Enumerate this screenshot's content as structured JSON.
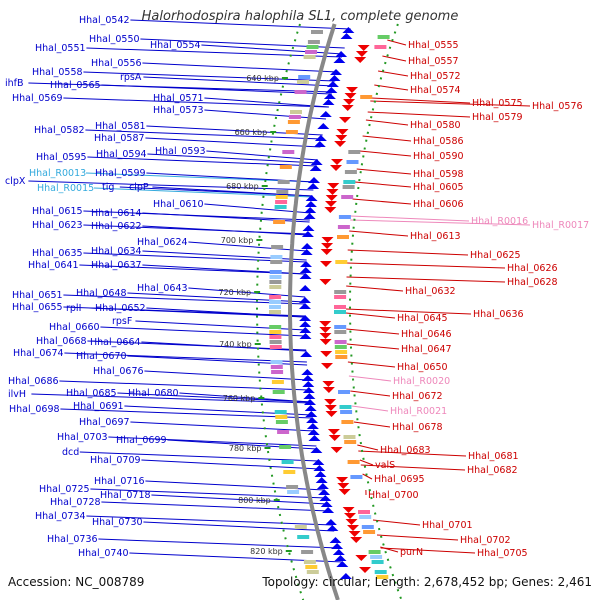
{
  "title": "Halorhodospira halophila SL1, complete genome",
  "footer": {
    "accession": "Accession: NC_008789",
    "summary": "Topology: circular; Length: 2,678,452 bp; Genes: 2,461"
  },
  "colors": {
    "forward_label": "#0000cc",
    "reverse_label": "#cc0000",
    "forward_rna_label": "#33aadd",
    "reverse_rna_label": "#ee88bb",
    "forward_arrow": "#0000ee",
    "reverse_arrow": "#ee0000",
    "tick_dots": "#229922",
    "backbone": "#888888"
  },
  "ticks": [
    "640 kbp",
    "660 kbp",
    "680 kbp",
    "700 kbp",
    "720 kbp",
    "740 kbp",
    "760 kbp",
    "780 kbp",
    "800 kbp",
    "820 kbp"
  ],
  "left_labels": [
    {
      "text": "Hhal_0542",
      "type": "gene"
    },
    {
      "text": "Hhal_0550",
      "type": "gene"
    },
    {
      "text": "Hhal_0551",
      "type": "gene"
    },
    {
      "text": "Hhal_0554",
      "type": "gene"
    },
    {
      "text": "Hhal_0556",
      "type": "gene"
    },
    {
      "text": "Hhal_0558",
      "type": "gene"
    },
    {
      "text": "rpsA",
      "type": "gene"
    },
    {
      "text": "ihfB",
      "type": "gene"
    },
    {
      "text": "Hhal_0565",
      "type": "gene"
    },
    {
      "text": "Hhal_0569",
      "type": "gene"
    },
    {
      "text": "Hhal_0571",
      "type": "gene"
    },
    {
      "text": "Hhal_0573",
      "type": "gene"
    },
    {
      "text": "Hhal_0581",
      "type": "gene"
    },
    {
      "text": "Hhal_0582",
      "type": "gene"
    },
    {
      "text": "Hhal_0587",
      "type": "gene"
    },
    {
      "text": "Hhal_0593",
      "type": "gene"
    },
    {
      "text": "Hhal_0594",
      "type": "gene"
    },
    {
      "text": "Hhal_0595",
      "type": "gene"
    },
    {
      "text": "Hhal_R0013",
      "type": "rna"
    },
    {
      "text": "Hhal_0599",
      "type": "gene"
    },
    {
      "text": "clpX",
      "type": "gene"
    },
    {
      "text": "clpP",
      "type": "gene"
    },
    {
      "text": "Hhal_R0015",
      "type": "rna"
    },
    {
      "text": "tig",
      "type": "gene"
    },
    {
      "text": "Hhal_0610",
      "type": "gene"
    },
    {
      "text": "Hhal_0615",
      "type": "gene"
    },
    {
      "text": "Hhal_0614",
      "type": "gene"
    },
    {
      "text": "Hhal_0623",
      "type": "gene"
    },
    {
      "text": "Hhal_0622",
      "type": "gene"
    },
    {
      "text": "Hhal_0624",
      "type": "gene"
    },
    {
      "text": "Hhal_0635",
      "type": "gene"
    },
    {
      "text": "Hhal_0634",
      "type": "gene"
    },
    {
      "text": "Hhal_0641",
      "type": "gene"
    },
    {
      "text": "Hhal_0637",
      "type": "gene"
    },
    {
      "text": "Hhal_0643",
      "type": "gene"
    },
    {
      "text": "Hhal_0651",
      "type": "gene"
    },
    {
      "text": "Hhal_0648",
      "type": "gene"
    },
    {
      "text": "Hhal_0655",
      "type": "gene"
    },
    {
      "text": "rplI",
      "type": "gene"
    },
    {
      "text": "Hhal_0652",
      "type": "gene"
    },
    {
      "text": "rpsF",
      "type": "gene"
    },
    {
      "text": "Hhal_0660",
      "type": "gene"
    },
    {
      "text": "Hhal_0668",
      "type": "gene"
    },
    {
      "text": "Hhal_0664",
      "type": "gene"
    },
    {
      "text": "Hhal_0674",
      "type": "gene"
    },
    {
      "text": "Hhal_0670",
      "type": "gene"
    },
    {
      "text": "Hhal_0676",
      "type": "gene"
    },
    {
      "text": "Hhal_0686",
      "type": "gene"
    },
    {
      "text": "ilvH",
      "type": "gene"
    },
    {
      "text": "Hhal_0685",
      "type": "gene"
    },
    {
      "text": "Hhal_0680",
      "type": "gene"
    },
    {
      "text": "Hhal_0698",
      "type": "gene"
    },
    {
      "text": "Hhal_0691",
      "type": "gene"
    },
    {
      "text": "Hhal_0697",
      "type": "gene"
    },
    {
      "text": "Hhal_0703",
      "type": "gene"
    },
    {
      "text": "Hhal_0699",
      "type": "gene"
    },
    {
      "text": "dcd",
      "type": "gene"
    },
    {
      "text": "Hhal_0709",
      "type": "gene"
    },
    {
      "text": "Hhal_0716",
      "type": "gene"
    },
    {
      "text": "Hhal_0725",
      "type": "gene"
    },
    {
      "text": "Hhal_0718",
      "type": "gene"
    },
    {
      "text": "Hhal_0728",
      "type": "gene"
    },
    {
      "text": "Hhal_0734",
      "type": "gene"
    },
    {
      "text": "Hhal_0730",
      "type": "gene"
    },
    {
      "text": "Hhal_0736",
      "type": "gene"
    },
    {
      "text": "Hhal_0740",
      "type": "gene"
    }
  ],
  "right_labels": [
    {
      "text": "Hhal_0555",
      "type": "gene"
    },
    {
      "text": "Hhal_0557",
      "type": "gene"
    },
    {
      "text": "Hhal_0572",
      "type": "gene"
    },
    {
      "text": "Hhal_0574",
      "type": "gene"
    },
    {
      "text": "Hhal_0575",
      "type": "gene"
    },
    {
      "text": "Hhal_0576",
      "type": "gene"
    },
    {
      "text": "Hhal_0579",
      "type": "gene"
    },
    {
      "text": "Hhal_0580",
      "type": "gene"
    },
    {
      "text": "Hhal_0586",
      "type": "gene"
    },
    {
      "text": "Hhal_0590",
      "type": "gene"
    },
    {
      "text": "Hhal_0598",
      "type": "gene"
    },
    {
      "text": "Hhal_0605",
      "type": "gene"
    },
    {
      "text": "Hhal_0606",
      "type": "gene"
    },
    {
      "text": "Hhal_R0016",
      "type": "rna"
    },
    {
      "text": "Hhal_R0017",
      "type": "rna"
    },
    {
      "text": "Hhal_0613",
      "type": "gene"
    },
    {
      "text": "Hhal_0625",
      "type": "gene"
    },
    {
      "text": "Hhal_0626",
      "type": "gene"
    },
    {
      "text": "Hhal_0628",
      "type": "gene"
    },
    {
      "text": "Hhal_0632",
      "type": "gene"
    },
    {
      "text": "Hhal_0636",
      "type": "gene"
    },
    {
      "text": "Hhal_0645",
      "type": "gene"
    },
    {
      "text": "Hhal_0646",
      "type": "gene"
    },
    {
      "text": "Hhal_0647",
      "type": "gene"
    },
    {
      "text": "Hhal_0650",
      "type": "gene"
    },
    {
      "text": "Hhal_R0020",
      "type": "rna"
    },
    {
      "text": "Hhal_0672",
      "type": "gene"
    },
    {
      "text": "Hhal_R0021",
      "type": "rna"
    },
    {
      "text": "Hhal_0678",
      "type": "gene"
    },
    {
      "text": "Hhal_0683",
      "type": "gene"
    },
    {
      "text": "Hhal_0681",
      "type": "gene"
    },
    {
      "text": "valS",
      "type": "gene"
    },
    {
      "text": "Hhal_0682",
      "type": "gene"
    },
    {
      "text": "Hhal_0695",
      "type": "gene"
    },
    {
      "text": "Hhal_0700",
      "type": "gene"
    },
    {
      "text": "Hhal_0701",
      "type": "gene"
    },
    {
      "text": "Hhal_0702",
      "type": "gene"
    },
    {
      "text": "Hhal_0705",
      "type": "gene"
    },
    {
      "text": "purN",
      "type": "gene"
    }
  ]
}
